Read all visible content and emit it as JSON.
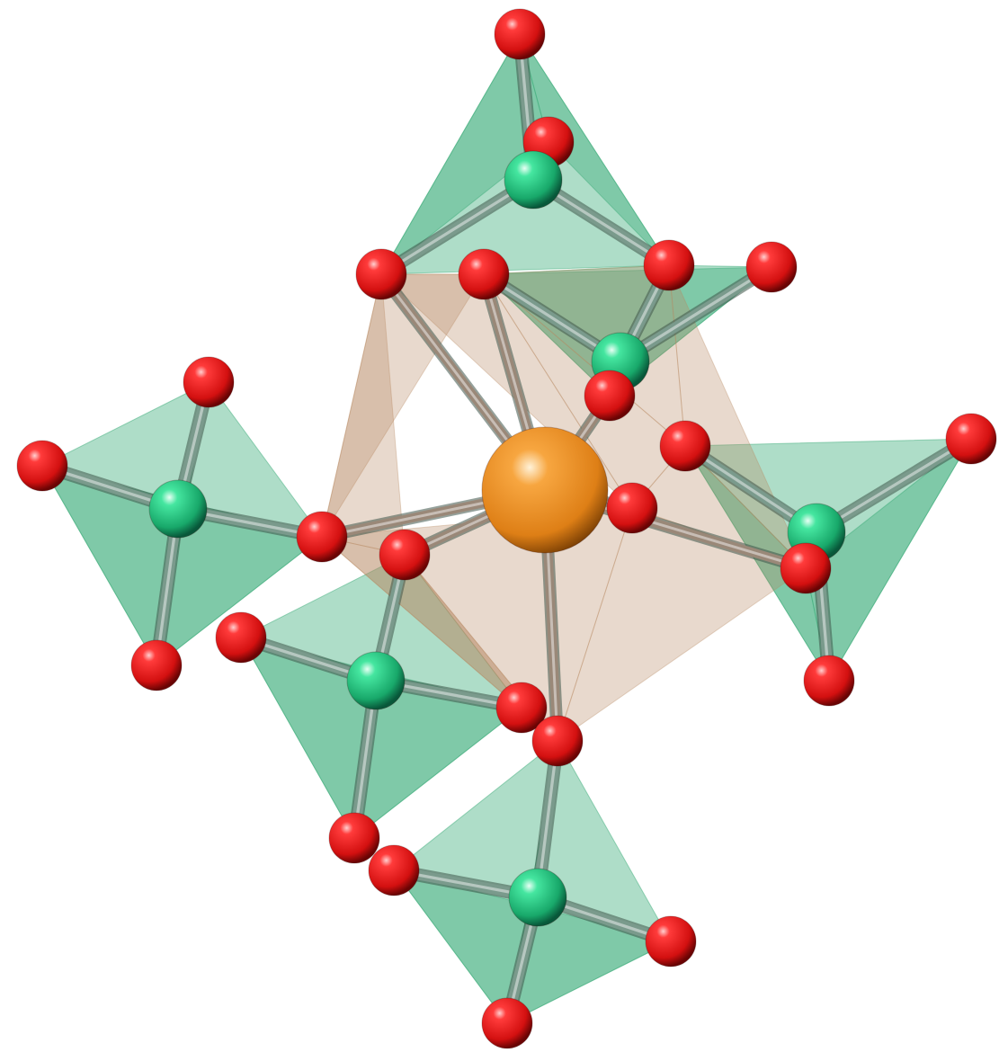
{
  "scene": {
    "description_hidden": "",
    "colors": {
      "background": "#ffffff",
      "oxygen": "#e31b1b",
      "oxygen_dark": "#7a0606",
      "tetra_center": "#2ed08a",
      "tetra_center_dark": "#0b6a45",
      "metal_center": "#f0962a",
      "metal_center_dark": "#8a4a08",
      "tetra_face": "#3fae7c",
      "metal_face": "#b88a62",
      "tetra_bond": "#7a9a8c",
      "metal_bond": "#9a8878"
    },
    "legend": []
  }
}
